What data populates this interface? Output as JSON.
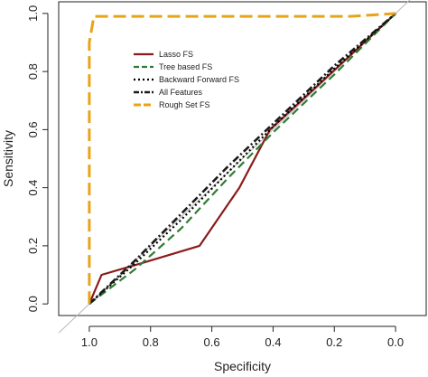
{
  "chart_data": {
    "type": "line",
    "title": "",
    "xlabel": "Specificity",
    "ylabel": "Sensitivity",
    "x_reversed": true,
    "xlim": [
      1.1,
      -0.1
    ],
    "ylim": [
      0.0,
      1.0
    ],
    "x_ticks": [
      1.0,
      0.8,
      0.6,
      0.4,
      0.2,
      0.0
    ],
    "x_tick_labels": [
      "1.0",
      "0.8",
      "0.6",
      "0.4",
      "0.2",
      "0.0"
    ],
    "y_ticks": [
      0.0,
      0.2,
      0.4,
      0.6,
      0.8,
      1.0
    ],
    "y_tick_labels": [
      "0.0",
      "0.2",
      "0.4",
      "0.6",
      "0.8",
      "1.0"
    ],
    "grid": false,
    "legend_position": "top-left",
    "reference_line": {
      "x": [
        1.0,
        0.0
      ],
      "y": [
        0.0,
        1.0
      ],
      "color": "#b8b8b8"
    },
    "series": [
      {
        "name": "Lasso FS",
        "color": "#8b1a1a",
        "dash": "solid",
        "x": [
          1.0,
          0.96,
          0.83,
          0.64,
          0.51,
          0.41,
          0.0
        ],
        "y": [
          0.0,
          0.1,
          0.14,
          0.2,
          0.4,
          0.6,
          1.0
        ]
      },
      {
        "name": "Tree based FS",
        "color": "#2e7d32",
        "dash": "dashed",
        "x": [
          1.0,
          0.85,
          0.7,
          0.55,
          0.4,
          0.2,
          0.0
        ],
        "y": [
          0.0,
          0.12,
          0.26,
          0.43,
          0.59,
          0.79,
          1.0
        ]
      },
      {
        "name": "Backward Forward FS",
        "color": "#000000",
        "dash": "dotted",
        "x": [
          1.0,
          0.85,
          0.7,
          0.55,
          0.4,
          0.2,
          0.0
        ],
        "y": [
          0.0,
          0.14,
          0.29,
          0.45,
          0.61,
          0.81,
          1.0
        ]
      },
      {
        "name": "All Features",
        "color": "#1a1a1a",
        "dash": "dashdot",
        "x": [
          1.0,
          0.85,
          0.7,
          0.55,
          0.4,
          0.2,
          0.0
        ],
        "y": [
          0.0,
          0.15,
          0.31,
          0.47,
          0.62,
          0.82,
          1.0
        ]
      },
      {
        "name": "Rough Set FS",
        "color": "#e8a317",
        "dash": "longdash",
        "x": [
          1.0,
          1.0,
          0.99,
          0.985,
          0.98,
          0.15,
          0.0
        ],
        "y": [
          0.0,
          0.9,
          0.96,
          0.99,
          0.99,
          0.99,
          1.0
        ]
      }
    ]
  }
}
